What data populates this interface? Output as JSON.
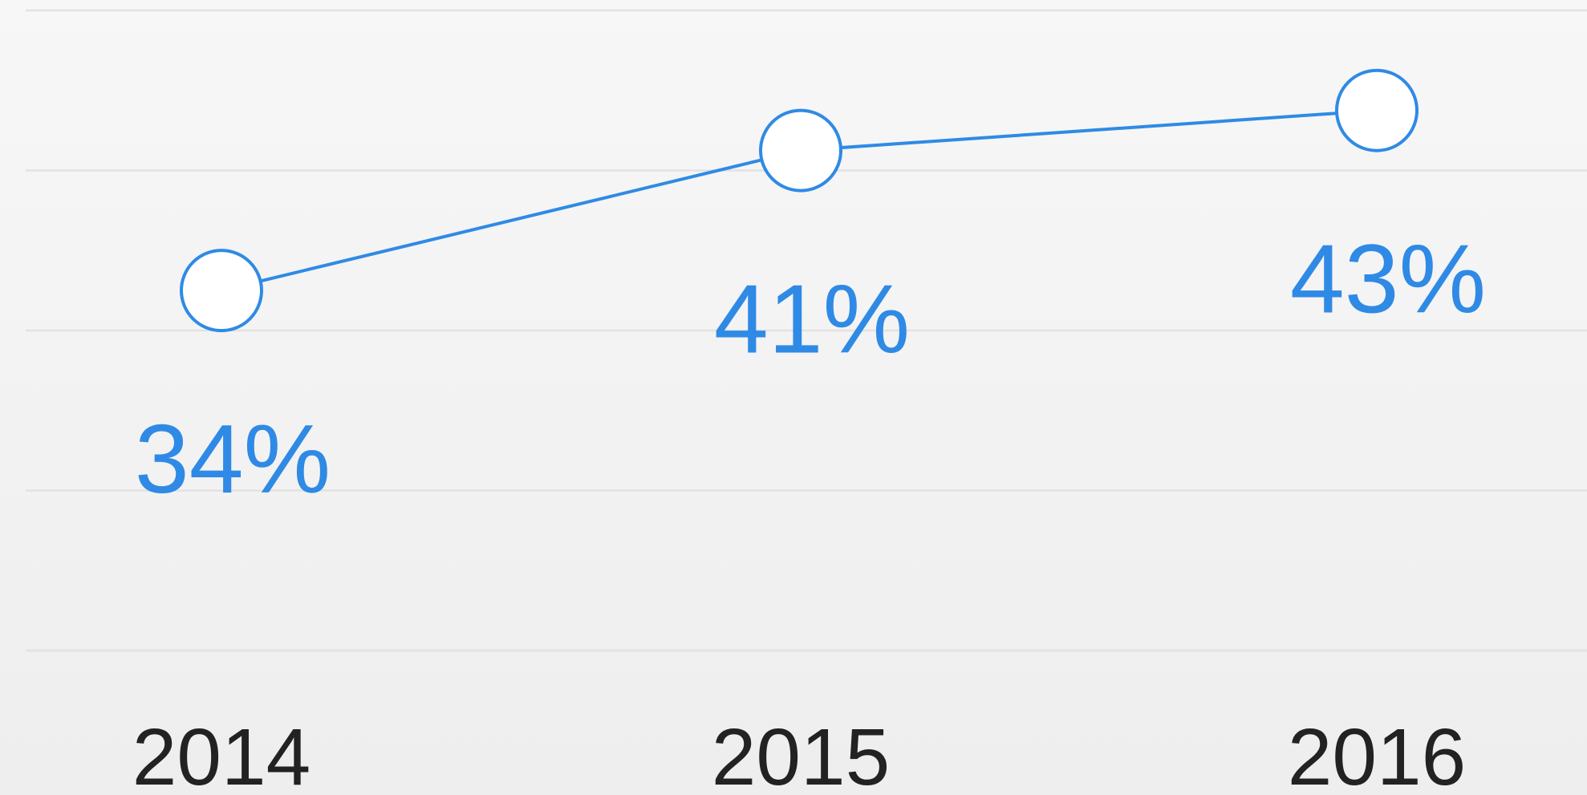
{
  "chart_data": {
    "type": "line",
    "categories": [
      "2014",
      "2015",
      "2016"
    ],
    "series": [
      {
        "color": "#2f8ae5",
        "values": [
          34,
          41,
          43
        ],
        "value_labels": [
          "34%",
          "41%",
          "43%"
        ]
      }
    ],
    "ylim": [
      16,
      48
    ],
    "yticks": [
      16,
      24,
      32,
      40,
      48
    ],
    "grid": true
  }
}
